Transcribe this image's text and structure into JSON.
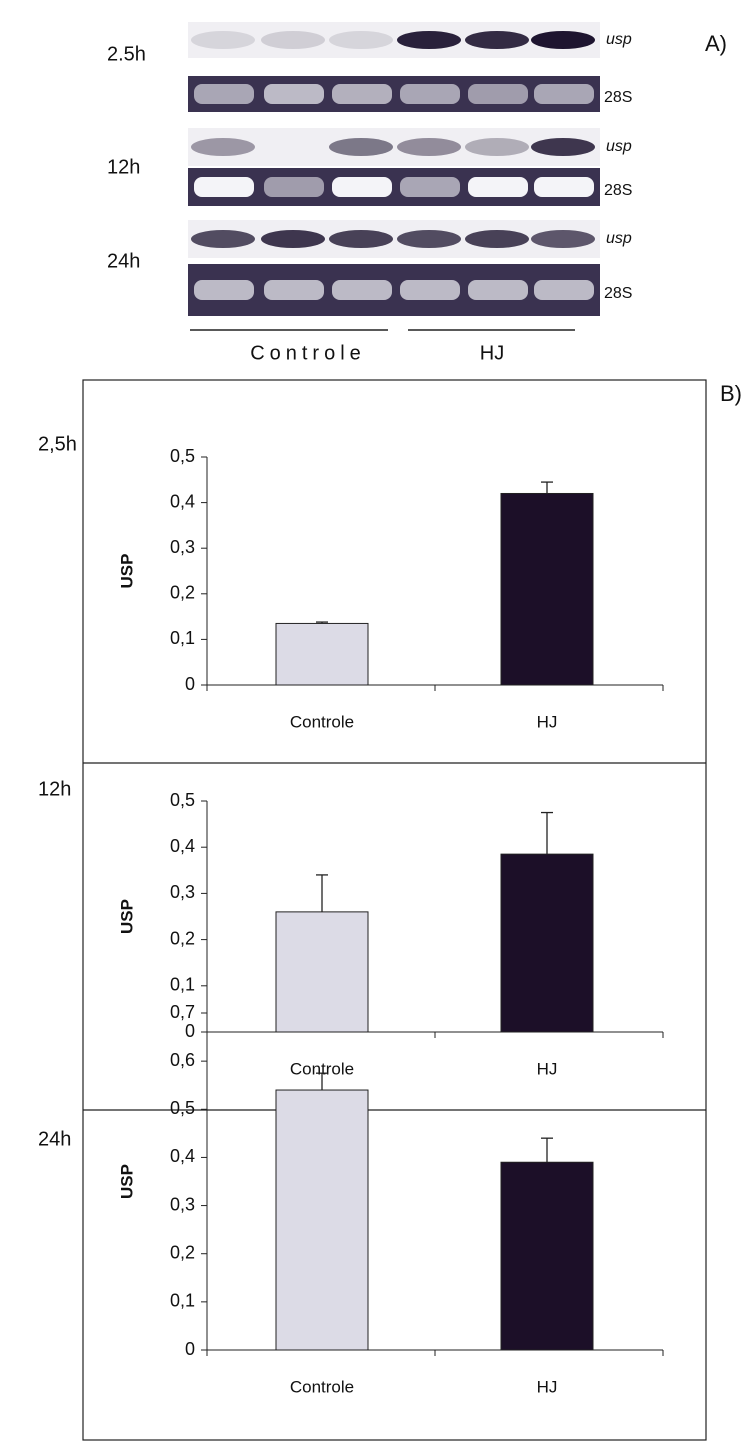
{
  "panel_a": {
    "label": "A)",
    "rows": [
      {
        "time": "2.5h",
        "gene": "usp",
        "reference": "28S"
      },
      {
        "time": "12h",
        "gene": "usp",
        "reference": "28S"
      },
      {
        "time": "24h",
        "gene": "usp",
        "reference": "28S"
      }
    ],
    "groups": [
      "Controle",
      "HJ"
    ]
  },
  "panel_b_label": "B)",
  "chart_data": [
    {
      "type": "bar",
      "title": "2,5h",
      "y_label": "USP",
      "categories": [
        "Controle",
        "HJ"
      ],
      "values": [
        0.135,
        0.42
      ],
      "errors": [
        0.003,
        0.025
      ],
      "colors": [
        "#dcdbe6",
        "#1c0f28"
      ],
      "ylim": [
        0,
        0.5
      ],
      "yticks": [
        0,
        {
          "value": 0.1,
          "label": "0,1"
        },
        {
          "value": 0.2,
          "label": "0,2"
        },
        {
          "value": 0.3,
          "label": "0,3"
        },
        {
          "value": 0.4,
          "label": "0,4"
        },
        {
          "value": 0.5,
          "label": "0,5"
        }
      ]
    },
    {
      "type": "bar",
      "title": "12h",
      "y_label": "USP",
      "categories": [
        "Controle",
        "HJ"
      ],
      "values": [
        0.26,
        0.385
      ],
      "errors": [
        0.08,
        0.09
      ],
      "colors": [
        "#dcdbe6",
        "#1c0f28"
      ],
      "ylim": [
        0,
        0.5
      ],
      "yticks": [
        0,
        {
          "value": 0.1,
          "label": "0,1"
        },
        {
          "value": 0.2,
          "label": "0,2"
        },
        {
          "value": 0.3,
          "label": "0,3"
        },
        {
          "value": 0.4,
          "label": "0,4"
        },
        {
          "value": 0.5,
          "label": "0,5"
        }
      ]
    },
    {
      "type": "bar",
      "title": "24h",
      "y_label": "USP",
      "categories": [
        "Controle",
        "HJ"
      ],
      "values": [
        0.54,
        0.39
      ],
      "errors": [
        0.035,
        0.05
      ],
      "colors": [
        "#dcdbe6",
        "#1c0f28"
      ],
      "ylim": [
        0,
        0.7
      ],
      "yticks": [
        0,
        {
          "value": 0.1,
          "label": "0,1"
        },
        {
          "value": 0.2,
          "label": "0,2"
        },
        {
          "value": 0.3,
          "label": "0,3"
        },
        {
          "value": 0.4,
          "label": "0,4"
        },
        {
          "value": 0.5,
          "label": "0,5"
        },
        {
          "value": 0.6,
          "label": "0,6"
        },
        {
          "value": 0.7,
          "label": "0,7"
        }
      ]
    }
  ]
}
